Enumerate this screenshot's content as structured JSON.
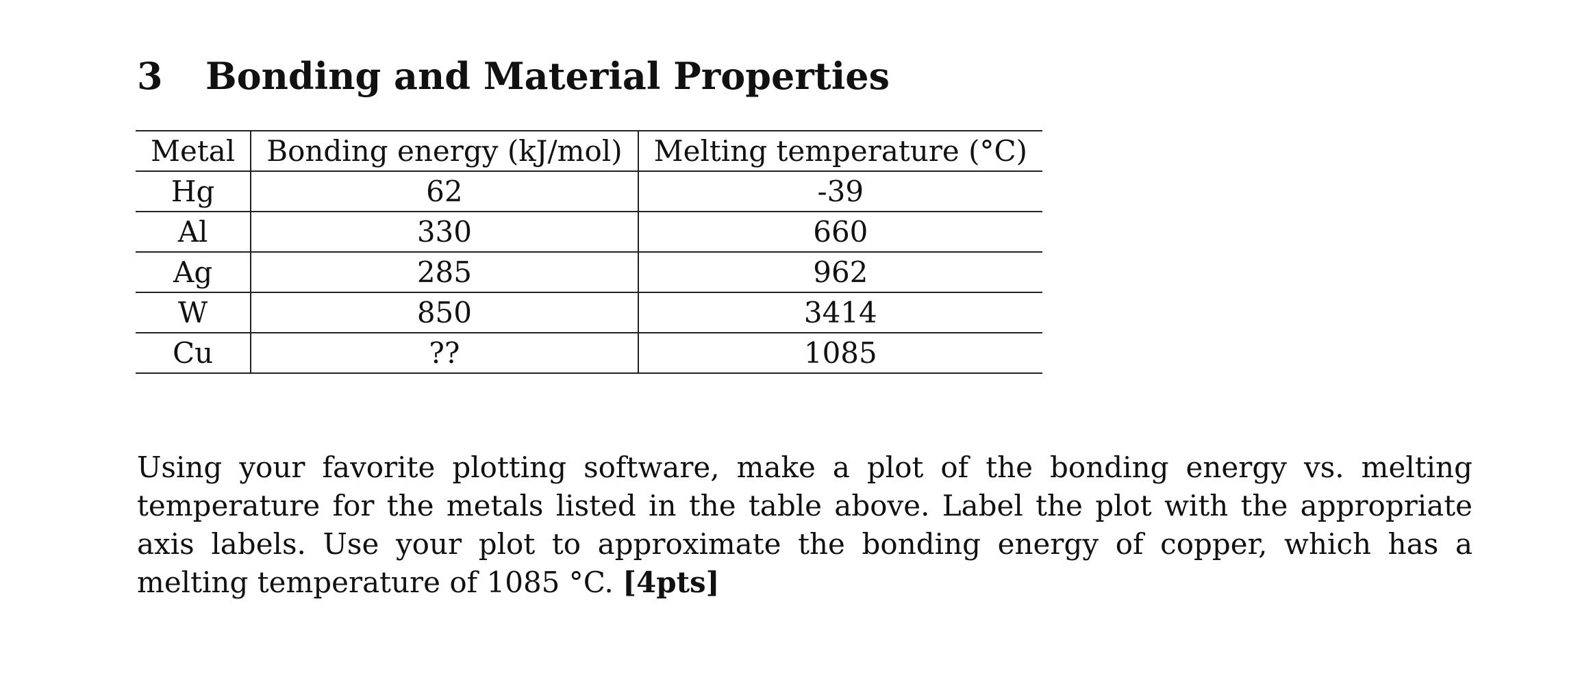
{
  "section": {
    "number": "3",
    "title": "Bonding and Material Properties"
  },
  "table": {
    "headers": [
      "Metal",
      "Bonding energy (kJ/mol)",
      "Melting temperature (°C)"
    ],
    "rows": [
      [
        "Hg",
        "62",
        "-39"
      ],
      [
        "Al",
        "330",
        "660"
      ],
      [
        "Ag",
        "285",
        "962"
      ],
      [
        "W",
        "850",
        "3414"
      ],
      [
        "Cu",
        "??",
        "1085"
      ]
    ]
  },
  "question": {
    "text": "Using your favorite plotting software, make a plot of the bonding energy vs. melting temperature for the metals listed in the table above. Label the plot with the appropriate axis labels. Use your plot to approximate the bonding energy of copper, which has a melting temperature of 1085 °C.",
    "points": "[4pts]"
  }
}
